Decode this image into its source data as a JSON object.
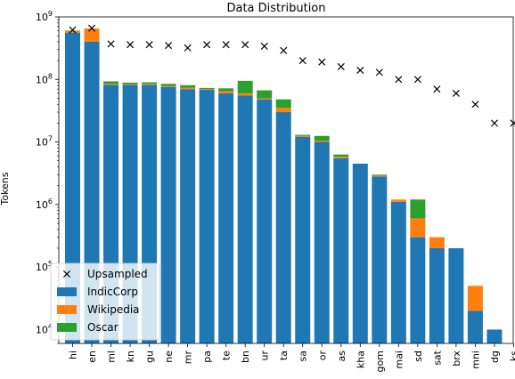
{
  "chart_data": {
    "type": "bar",
    "title": "Data Distribution",
    "xlabel": "",
    "ylabel": "Tokens",
    "yscale": "log",
    "ylim": [
      6000,
      1000000000
    ],
    "y_ticks": [
      {
        "value": 10000,
        "base": "10",
        "exp": "4"
      },
      {
        "value": 100000,
        "base": "10",
        "exp": "5"
      },
      {
        "value": 1000000,
        "base": "10",
        "exp": "6"
      },
      {
        "value": 10000000,
        "base": "10",
        "exp": "7"
      },
      {
        "value": 100000000,
        "base": "10",
        "exp": "8"
      },
      {
        "value": 1000000000,
        "base": "10",
        "exp": "9"
      }
    ],
    "stacked": true,
    "grid": false,
    "legend_position": "bottom-left",
    "categories": [
      "hi",
      "en",
      "ml",
      "kn",
      "gu",
      "ne",
      "mr",
      "pa",
      "te",
      "bn",
      "ur",
      "ta",
      "sa",
      "or",
      "as",
      "kha",
      "gom",
      "mai",
      "sd",
      "sat",
      "brx",
      "mni",
      "dg",
      "ks"
    ],
    "series": [
      {
        "name": "IndicCorp",
        "color": "#1f77b4",
        "values": [
          560000000,
          400000000,
          82000000,
          82000000,
          82000000,
          76000000,
          70000000,
          68000000,
          60000000,
          55000000,
          48000000,
          30000000,
          12000000,
          10000000,
          5500000,
          4500000,
          2800000,
          1100000,
          300000,
          200000,
          200000,
          20000,
          10000,
          0
        ]
      },
      {
        "name": "Wikipedia",
        "color": "#ff7f0e",
        "values": [
          40000000,
          250000000,
          3000000,
          2000000,
          3000000,
          3000000,
          4000000,
          2000000,
          5000000,
          5000000,
          2000000,
          5000000,
          500000,
          500000,
          300000,
          0,
          100000,
          100000,
          300000,
          100000,
          0,
          30000,
          0,
          0
        ]
      },
      {
        "name": "Oscar",
        "color": "#2ca02c",
        "values": [
          5000000,
          5000000,
          8000000,
          5000000,
          5000000,
          6000000,
          7000000,
          3000000,
          7000000,
          35000000,
          17000000,
          13000000,
          500000,
          2000000,
          500000,
          0,
          100000,
          0,
          600000,
          0,
          0,
          0,
          0,
          0
        ]
      }
    ],
    "upsampled": {
      "name": "Upsampled",
      "marker": "x",
      "values": [
        620000000,
        660000000,
        370000000,
        360000000,
        360000000,
        350000000,
        320000000,
        360000000,
        360000000,
        360000000,
        340000000,
        290000000,
        200000000,
        190000000,
        160000000,
        140000000,
        130000000,
        100000000,
        100000000,
        70000000,
        60000000,
        40000000,
        20000000,
        20000000
      ]
    }
  }
}
